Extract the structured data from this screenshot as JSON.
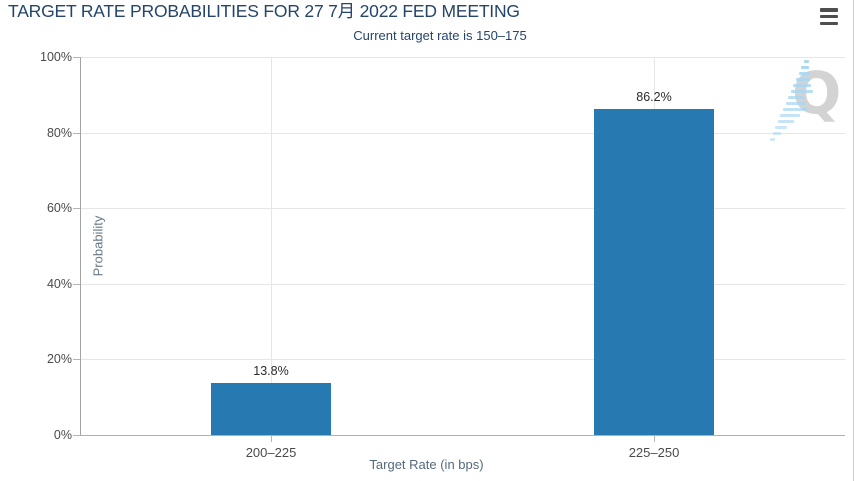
{
  "header": {
    "menu_icon": "hamburger-icon"
  },
  "chart_data": {
    "type": "bar",
    "title": "TARGET RATE PROBABILITIES FOR 27 7月 2022 FED MEETING",
    "subtitle": "Current target rate is 150–175",
    "categories": [
      "200–225",
      "225–250"
    ],
    "values": [
      13.8,
      86.2
    ],
    "data_labels": [
      "13.8%",
      "86.2%"
    ],
    "xlabel": "Target Rate (in bps)",
    "ylabel": "Probability",
    "ylim": [
      0,
      100
    ],
    "yticks": [
      0,
      20,
      40,
      60,
      80,
      100
    ],
    "ytick_labels": [
      "0%",
      "20%",
      "40%",
      "60%",
      "80%",
      "100%"
    ],
    "grid": true,
    "legend": "none",
    "bar_color": "#2779b2"
  },
  "watermark": {
    "letter": "Q"
  },
  "colors": {
    "title": "#25456a",
    "subtitle": "#25456a",
    "bar": "#2779b2",
    "gridline": "#e6e6e6",
    "axis_label": "#4a4a4a",
    "axis_title": "#55697e",
    "watermark_gray": "#d3d3d3",
    "watermark_blue": "#a8d6f2",
    "border": "#cccccc"
  }
}
